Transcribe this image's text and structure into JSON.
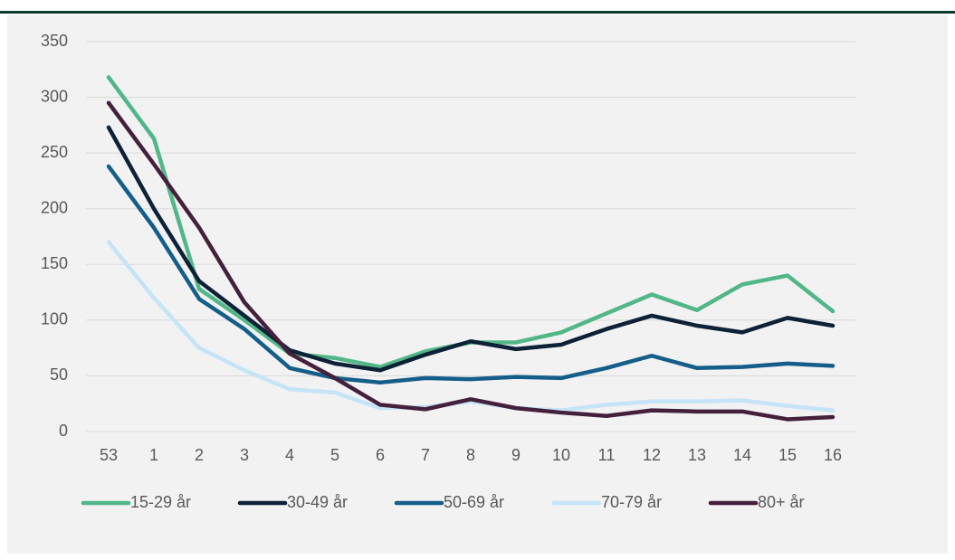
{
  "chart_data": {
    "type": "line",
    "categories": [
      "53",
      "1",
      "2",
      "3",
      "4",
      "5",
      "6",
      "7",
      "8",
      "9",
      "10",
      "11",
      "12",
      "13",
      "14",
      "15",
      "16"
    ],
    "series": [
      {
        "name": "15-29 år",
        "color": "#52b788",
        "values": [
          318,
          263,
          128,
          100,
          70,
          66,
          58,
          72,
          80,
          80,
          89,
          106,
          123,
          109,
          132,
          140,
          108
        ]
      },
      {
        "name": "30-49 år",
        "color": "#0d2137",
        "values": [
          273,
          200,
          135,
          104,
          73,
          61,
          55,
          69,
          81,
          74,
          78,
          92,
          104,
          95,
          89,
          102,
          95
        ]
      },
      {
        "name": "50-69 år",
        "color": "#155e8a",
        "values": [
          238,
          183,
          119,
          92,
          57,
          48,
          44,
          48,
          47,
          49,
          48,
          57,
          68,
          57,
          58,
          61,
          59
        ]
      },
      {
        "name": "70-79 år",
        "color": "#c5e4f7",
        "values": [
          170,
          120,
          75,
          55,
          38,
          35,
          21,
          22,
          27,
          21,
          19,
          24,
          27,
          27,
          28,
          23,
          19
        ]
      },
      {
        "name": "80+ år",
        "color": "#44203c",
        "values": [
          295,
          240,
          183,
          116,
          70,
          48,
          24,
          20,
          29,
          21,
          17,
          14,
          19,
          18,
          18,
          11,
          13
        ]
      }
    ],
    "ylim": [
      0,
      350
    ],
    "yticks": [
      0,
      50,
      100,
      150,
      200,
      250,
      300,
      350
    ],
    "grid": true,
    "legend": "bottom"
  }
}
